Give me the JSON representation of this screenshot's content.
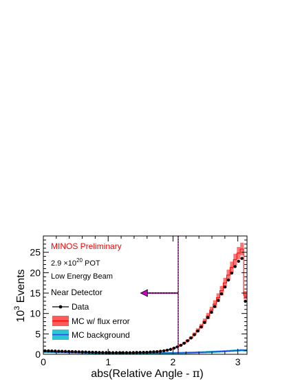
{
  "chart_data": {
    "type": "line",
    "xlabel_main": "abs(Relative Angle - ",
    "xlabel_symbol": "π",
    "xlabel_end": ")",
    "ylabel_base": "10",
    "ylabel_exp": "3",
    "ylabel_text": " Events",
    "xlim": [
      0,
      3.1416
    ],
    "ylim": [
      0,
      29
    ],
    "x_ticks": [
      0,
      1,
      2,
      3
    ],
    "y_ticks": [
      0,
      5,
      10,
      15,
      20,
      25
    ],
    "x_tick_labels": [
      "0",
      "1",
      "2",
      "3"
    ],
    "y_tick_labels": [
      "0",
      "5",
      "10",
      "15",
      "20",
      "25"
    ],
    "cut_value": 2.08,
    "cut_arrow_to": 1.5,
    "annotations": {
      "preliminary": "MINOS Preliminary",
      "pot_prefix": "2.9 ×10",
      "pot_exp": "20",
      "pot_suffix": " POT",
      "beam": "Low Energy Beam",
      "detector": "Near Detector"
    },
    "legend": [
      {
        "key": "data",
        "label": "Data"
      },
      {
        "key": "mc",
        "label": "MC w/ flux error"
      },
      {
        "key": "bg",
        "label": "MC background"
      }
    ],
    "colors": {
      "data": "#000000",
      "mc_band": "#ff5a5a",
      "mc_line": "#ff0000",
      "bg_band": "#2ec4d0",
      "bg_line": "#1a4fe0",
      "cut_line": "#8b1a8b",
      "arrow": "#cc00cc",
      "preliminary_text": "#ff0000"
    },
    "bin_width": 0.0524,
    "data_x": [
      0.026,
      0.079,
      0.131,
      0.183,
      0.236,
      0.288,
      0.34,
      0.393,
      0.445,
      0.497,
      0.55,
      0.602,
      0.654,
      0.707,
      0.759,
      0.812,
      0.864,
      0.916,
      0.969,
      1.021,
      1.073,
      1.126,
      1.178,
      1.23,
      1.283,
      1.335,
      1.388,
      1.44,
      1.492,
      1.545,
      1.597,
      1.649,
      1.702,
      1.754,
      1.806,
      1.859,
      1.911,
      1.963,
      2.016,
      2.068,
      2.121,
      2.173,
      2.225,
      2.278,
      2.33,
      2.382,
      2.435,
      2.487,
      2.539,
      2.592,
      2.644,
      2.697,
      2.749,
      2.801,
      2.854,
      2.906,
      2.958,
      3.011,
      3.063,
      3.115
    ],
    "data_y": [
      0.85,
      0.82,
      0.8,
      0.78,
      0.75,
      0.73,
      0.7,
      0.68,
      0.65,
      0.62,
      0.6,
      0.58,
      0.55,
      0.52,
      0.5,
      0.48,
      0.46,
      0.44,
      0.42,
      0.4,
      0.4,
      0.4,
      0.4,
      0.4,
      0.4,
      0.4,
      0.42,
      0.45,
      0.45,
      0.47,
      0.5,
      0.55,
      0.6,
      0.65,
      0.75,
      0.85,
      1.0,
      1.2,
      1.5,
      1.8,
      2.2,
      2.7,
      3.3,
      4.0,
      4.8,
      5.7,
      6.7,
      7.8,
      9.0,
      10.3,
      11.7,
      13.2,
      14.8,
      16.5,
      18.2,
      19.9,
      21.5,
      22.8,
      23.5,
      13.0
    ],
    "mc_y": [
      0.9,
      0.87,
      0.84,
      0.82,
      0.79,
      0.76,
      0.74,
      0.71,
      0.68,
      0.65,
      0.63,
      0.6,
      0.57,
      0.55,
      0.52,
      0.5,
      0.48,
      0.46,
      0.44,
      0.42,
      0.42,
      0.42,
      0.42,
      0.42,
      0.42,
      0.42,
      0.44,
      0.46,
      0.47,
      0.49,
      0.52,
      0.57,
      0.62,
      0.68,
      0.78,
      0.9,
      1.05,
      1.25,
      1.55,
      1.9,
      2.3,
      2.8,
      3.4,
      4.1,
      4.95,
      5.9,
      6.9,
      8.1,
      9.4,
      10.8,
      12.3,
      13.9,
      15.6,
      17.5,
      19.4,
      21.3,
      23.2,
      24.8,
      25.8,
      14.5
    ],
    "mc_err": [
      0.05,
      0.05,
      0.05,
      0.05,
      0.05,
      0.05,
      0.05,
      0.05,
      0.05,
      0.05,
      0.05,
      0.05,
      0.05,
      0.05,
      0.05,
      0.05,
      0.05,
      0.05,
      0.05,
      0.05,
      0.05,
      0.05,
      0.05,
      0.05,
      0.05,
      0.05,
      0.05,
      0.05,
      0.05,
      0.05,
      0.05,
      0.05,
      0.05,
      0.05,
      0.06,
      0.07,
      0.08,
      0.1,
      0.12,
      0.15,
      0.18,
      0.22,
      0.27,
      0.33,
      0.4,
      0.47,
      0.55,
      0.65,
      0.75,
      0.85,
      0.95,
      1.05,
      1.15,
      1.25,
      1.35,
      1.4,
      1.45,
      1.5,
      1.55,
      1.0
    ],
    "bg_y": [
      0.6,
      0.58,
      0.56,
      0.54,
      0.52,
      0.5,
      0.48,
      0.46,
      0.44,
      0.42,
      0.4,
      0.38,
      0.36,
      0.34,
      0.33,
      0.32,
      0.31,
      0.3,
      0.3,
      0.3,
      0.3,
      0.3,
      0.3,
      0.3,
      0.3,
      0.3,
      0.3,
      0.3,
      0.3,
      0.3,
      0.3,
      0.3,
      0.3,
      0.3,
      0.3,
      0.3,
      0.3,
      0.3,
      0.3,
      0.32,
      0.34,
      0.36,
      0.38,
      0.4,
      0.42,
      0.45,
      0.48,
      0.51,
      0.55,
      0.58,
      0.62,
      0.66,
      0.7,
      0.75,
      0.8,
      0.85,
      0.9,
      0.95,
      1.0,
      0.95
    ]
  }
}
